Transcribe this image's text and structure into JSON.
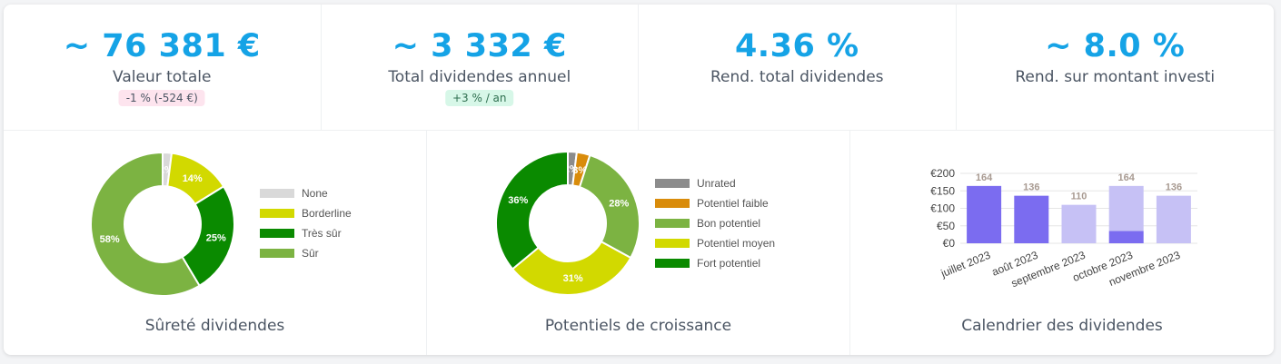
{
  "stats": [
    {
      "value": "~ 76 381 €",
      "label": "Valeur totale",
      "badge": "-1 % (-524 €)"
    },
    {
      "value": "~ 3 332 €",
      "label": "Total dividendes annuel",
      "badge": "+3 % / an"
    },
    {
      "value": "4.36 %",
      "label": "Rend. total dividendes"
    },
    {
      "value": "~ 8.0 %",
      "label": "Rend. sur montant investi"
    }
  ],
  "safety": {
    "title": "Sûreté dividendes",
    "legend": [
      {
        "label": "None",
        "color": "#d9d9d9"
      },
      {
        "label": "Borderline",
        "color": "#d2d900"
      },
      {
        "label": "Très sûr",
        "color": "#0a8a00"
      },
      {
        "label": "Sûr",
        "color": "#7cb342"
      }
    ]
  },
  "growth": {
    "title": "Potentiels de croissance",
    "legend": [
      {
        "label": "Unrated",
        "color": "#8c8c8c"
      },
      {
        "label": "Potentiel faible",
        "color": "#d98c0b"
      },
      {
        "label": "Bon potentiel",
        "color": "#7cb342"
      },
      {
        "label": "Potentiel moyen",
        "color": "#d2d900"
      },
      {
        "label": "Fort potentiel",
        "color": "#0a8a00"
      }
    ]
  },
  "calendar": {
    "title": "Calendrier des dividendes"
  },
  "chart_data": [
    {
      "type": "pie",
      "donut": true,
      "labels": [
        "None",
        "Borderline",
        "Très sûr",
        "Sûr"
      ],
      "values": [
        2,
        14,
        25,
        58
      ],
      "value_labels": [
        "2%",
        "14%",
        "25%",
        "58%"
      ],
      "colors": [
        "#d9d9d9",
        "#d2d900",
        "#0a8a00",
        "#7cb342"
      ],
      "title": "Sûreté dividendes"
    },
    {
      "type": "pie",
      "donut": true,
      "labels": [
        "Unrated",
        "Potentiel faible",
        "Bon potentiel",
        "Potentiel moyen",
        "Fort potentiel"
      ],
      "values": [
        2,
        3,
        28,
        31,
        36
      ],
      "value_labels": [
        "2%",
        "3%",
        "28%",
        "31%",
        "36%"
      ],
      "colors": [
        "#8c8c8c",
        "#d98c0b",
        "#7cb342",
        "#d2d900",
        "#0a8a00"
      ],
      "title": "Potentiels de croissance"
    },
    {
      "type": "bar",
      "stacked": true,
      "categories": [
        "juillet 2023",
        "août 2023",
        "septembre 2023",
        "octobre 2023",
        "novembre 2023"
      ],
      "totals": [
        164,
        136,
        110,
        164,
        136
      ],
      "series": [
        {
          "values": [
            164,
            136,
            0,
            35,
            0
          ],
          "color": "#7b6cf0"
        },
        {
          "values": [
            0,
            0,
            110,
            129,
            136
          ],
          "color": "#c6c1f5"
        }
      ],
      "yticks": [
        "€0",
        "€50",
        "€100",
        "€150",
        "€200"
      ],
      "ylim": [
        0,
        200
      ],
      "grid": true,
      "title": "Calendrier des dividendes"
    }
  ]
}
